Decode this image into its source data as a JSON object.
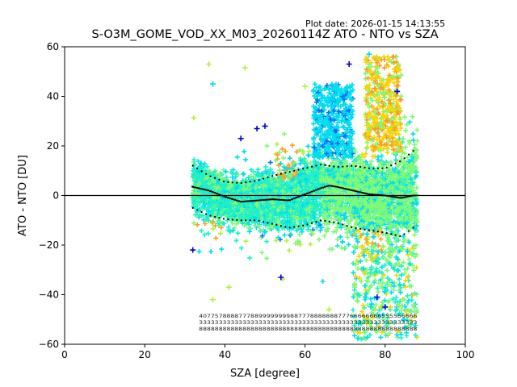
{
  "plot_date": "Plot date: 2026-01-15 14:13:55",
  "chart_data": {
    "type": "scatter",
    "title": "S-O3M_GOME_VOD_XX_M03_20260114Z ATO - NTO vs SZA",
    "xlabel": "SZA [degree]",
    "ylabel": "ATO - NTO [DU]",
    "xlim": [
      0,
      100
    ],
    "ylim": [
      -60,
      60
    ],
    "xticks": [
      0,
      20,
      40,
      60,
      80,
      100
    ],
    "yticks": [
      -60,
      -40,
      -20,
      0,
      20,
      40,
      60
    ],
    "xtick_labels": [
      "0",
      "20",
      "40",
      "60",
      "80",
      "100"
    ],
    "ytick_labels": [
      "−60",
      "−40",
      "−20",
      "0",
      "20",
      "40",
      "60"
    ],
    "zero_line": 0,
    "marker": "+",
    "sza_range": [
      32,
      88
    ],
    "colors": {
      "teal": "#20f0c8",
      "cyan": "#00dcf0",
      "blue": "#0a6cf5",
      "lightgreen": "#80f878",
      "lime": "#b4f040",
      "yellow": "#f8d400",
      "orange": "#f8a020",
      "darkblue": "#0000d8"
    },
    "mean_series": {
      "name": "mean",
      "x": [
        32,
        36,
        40,
        44,
        48,
        52,
        56,
        60,
        64,
        66,
        68,
        72,
        76,
        80,
        84,
        87
      ],
      "y": [
        3.5,
        2.0,
        -0.5,
        -2.5,
        -2.0,
        -1.5,
        -2.0,
        0.5,
        3.0,
        4.0,
        3.5,
        2.0,
        0.5,
        0,
        -1.0,
        0
      ]
    },
    "upper_series": {
      "name": "mean + std",
      "x": [
        32,
        36,
        40,
        44,
        48,
        52,
        56,
        60,
        64,
        68,
        72,
        76,
        80,
        84,
        87
      ],
      "y": [
        12,
        8,
        5.5,
        5,
        6,
        8,
        9.5,
        11,
        12.5,
        11.5,
        12,
        11,
        11,
        14,
        18
      ]
    },
    "lower_series": {
      "name": "mean - std",
      "x": [
        32,
        36,
        40,
        44,
        48,
        52,
        56,
        60,
        64,
        68,
        72,
        76,
        80,
        84,
        87
      ],
      "y": [
        -5,
        -8,
        -9.5,
        -10,
        -10,
        -11.5,
        -13,
        -12,
        -10,
        -11,
        -13,
        -14,
        -15,
        -16.5,
        -13
      ]
    },
    "count_labels": {
      "row1": "4077578888777889999999988777888888877766666666555556666",
      "row2": "3333333333333333333333333333333333333333333333333333333",
      "row3": "8888888888888888888888888888888888888888888888888888888"
    }
  }
}
